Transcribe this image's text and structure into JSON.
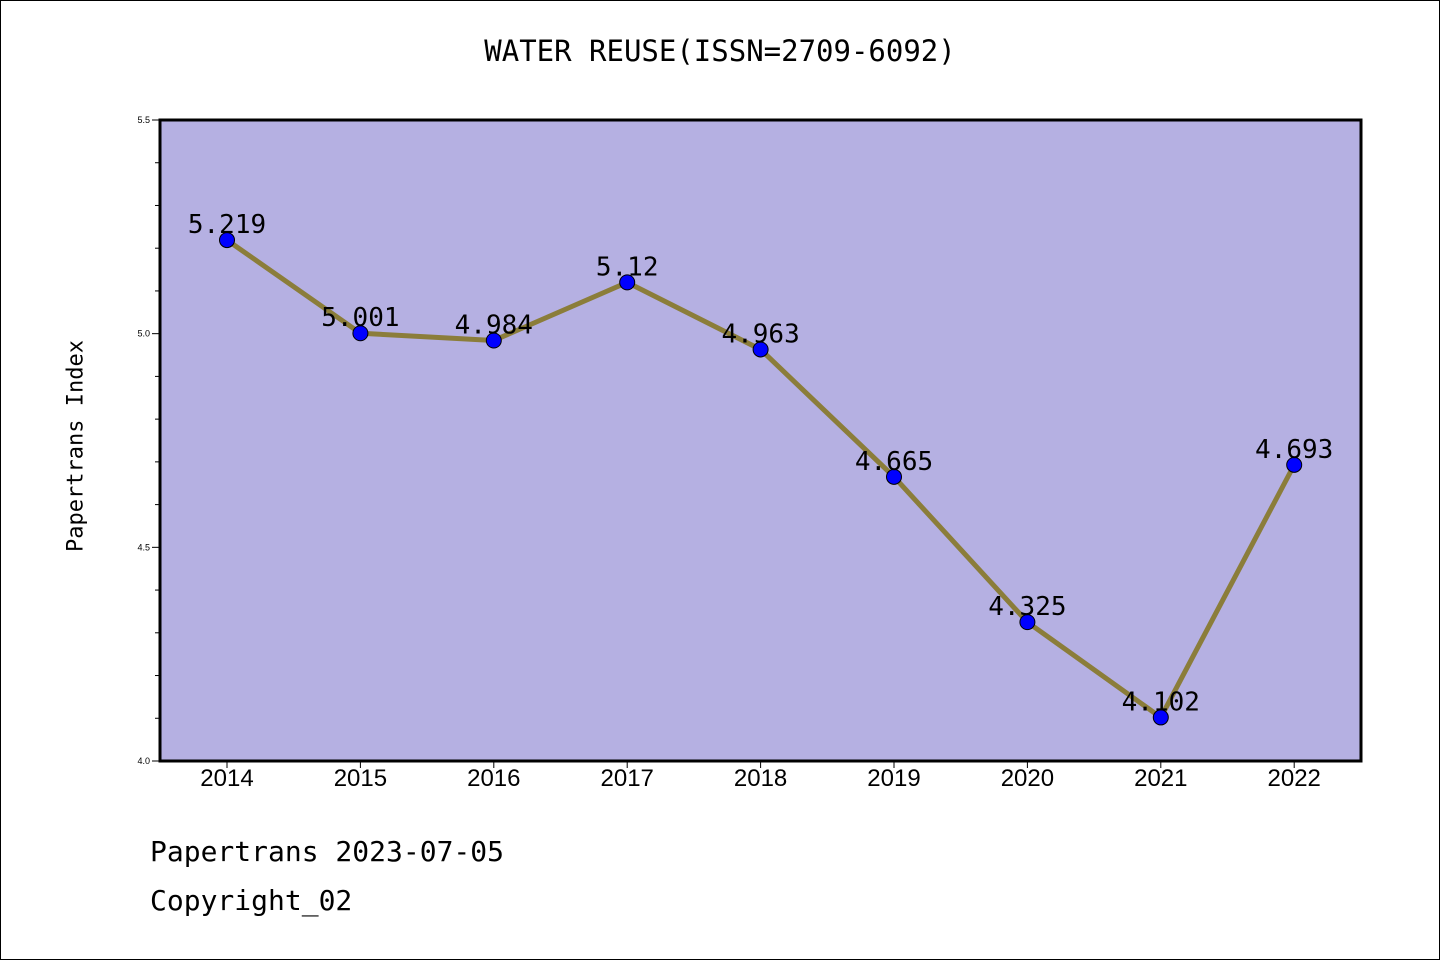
{
  "chart_data": {
    "type": "line",
    "title": "WATER REUSE(ISSN=2709-6092)",
    "xlabel": "",
    "ylabel": "Papertrans Index",
    "categories": [
      "2014",
      "2015",
      "2016",
      "2017",
      "2018",
      "2019",
      "2020",
      "2021",
      "2022"
    ],
    "values": [
      5.219,
      5.001,
      4.984,
      5.12,
      4.963,
      4.665,
      4.325,
      4.102,
      4.693
    ],
    "data_labels": [
      "5.219",
      "5.001",
      "4.984",
      "5.12",
      "4.963",
      "4.665",
      "4.325",
      "4.102",
      "4.693"
    ],
    "ylim": [
      4.0,
      5.5
    ],
    "yticks": [
      "4.0",
      "4.5",
      "5.0",
      "5.5"
    ],
    "grid": false,
    "colors": {
      "plot_background": "#b5b0e2",
      "line": "#8b7d3a",
      "marker": "#0000ff"
    }
  },
  "footer": {
    "line1": "Papertrans 2023-07-05",
    "line2": "Copyright_02"
  }
}
